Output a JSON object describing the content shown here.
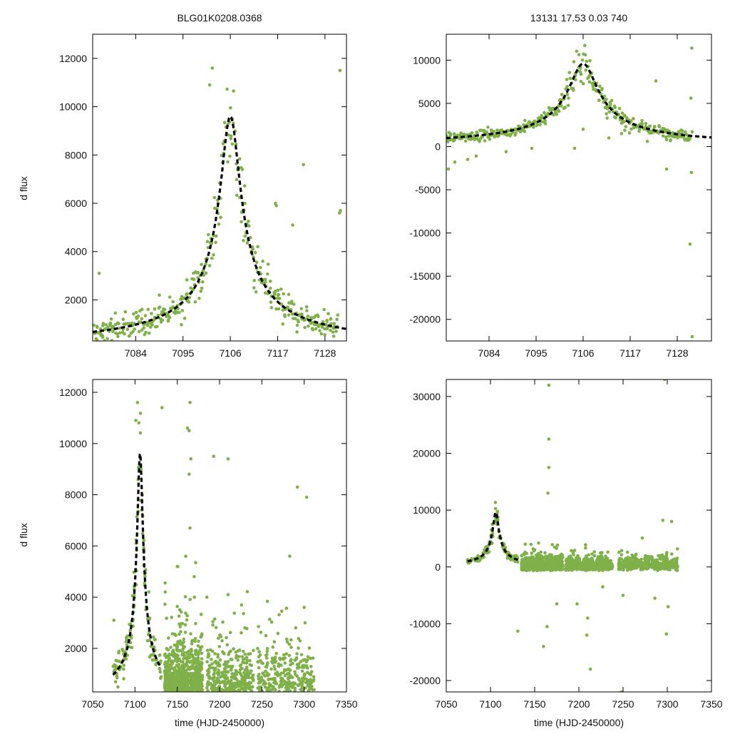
{
  "figure": {
    "title_left": "BLG01K0208.0368",
    "title_right": "13131   17.53   0.03   740",
    "point_color": "#7fb04a",
    "fit_color": "#000000"
  },
  "chart_data": [
    {
      "id": "top-left",
      "type": "scatter",
      "title": "BLG01K0208.0368",
      "xlabel": "",
      "ylabel": "d flux",
      "xlim": [
        7074,
        7133
      ],
      "ylim": [
        300,
        13000
      ],
      "xticks": [
        7084,
        7095,
        7106,
        7117,
        7128
      ],
      "yticks": [
        2000,
        4000,
        6000,
        8000,
        10000,
        12000
      ],
      "points": [
        [
          7075.5,
          3100
        ],
        [
          7089.5,
          2200
        ],
        [
          7101.2,
          10900
        ],
        [
          7101.8,
          11600
        ],
        [
          7108.8,
          7400
        ],
        [
          7111.5,
          2500
        ],
        [
          7116.5,
          6000
        ],
        [
          7116.7,
          5900
        ],
        [
          7118.2,
          1000
        ],
        [
          7120.5,
          5100
        ],
        [
          7123,
          7600
        ],
        [
          7131.5,
          11500
        ],
        [
          7131.4,
          5600
        ],
        [
          7131.6,
          5700
        ],
        [
          7126.5,
          900
        ],
        [
          7129.3,
          1200
        ]
      ],
      "fit": {
        "t0": 7106,
        "peak": 9600,
        "width": 4.5
      },
      "cloud": {
        "from": 7074,
        "to": 7131,
        "scatter": 0.12,
        "count": 380
      }
    },
    {
      "id": "top-right",
      "type": "scatter",
      "title": "13131   17.53   0.03   740",
      "xlabel": "",
      "ylabel": "",
      "xlim": [
        7074,
        7136
      ],
      "ylim": [
        -22500,
        13000
      ],
      "xticks": [
        7084,
        7095,
        7106,
        7117,
        7128
      ],
      "yticks": [
        -20000,
        -15000,
        -10000,
        -5000,
        0,
        5000,
        10000
      ],
      "points": [
        [
          7074.5,
          -2600
        ],
        [
          7076,
          -1800
        ],
        [
          7079,
          -1500
        ],
        [
          7081,
          -1100
        ],
        [
          7088,
          -600
        ],
        [
          7094,
          -200
        ],
        [
          7104,
          -200
        ],
        [
          7106,
          2000
        ],
        [
          7112,
          1000
        ],
        [
          7115,
          1500
        ],
        [
          7121,
          600
        ],
        [
          7123,
          7600
        ],
        [
          7125.5,
          -2600
        ],
        [
          7131,
          -11300
        ],
        [
          7131.4,
          11400
        ],
        [
          7131.2,
          5600
        ],
        [
          7131.5,
          -22000
        ],
        [
          7131.3,
          -3000
        ],
        [
          7131.5,
          1700
        ]
      ],
      "fit": {
        "t0": 7106,
        "peak": 9600,
        "width": 6.6
      },
      "cloud": {
        "from": 7074,
        "to": 7131,
        "scatter": 0.12,
        "count": 380
      }
    },
    {
      "id": "bottom-left",
      "type": "scatter",
      "title": "",
      "xlabel": "time (HJD-2450000)",
      "ylabel": "d flux",
      "xlim": [
        7050,
        7350
      ],
      "ylim": [
        300,
        12500
      ],
      "xticks": [
        7050,
        7100,
        7150,
        7200,
        7250,
        7300,
        7350
      ],
      "yticks": [
        2000,
        4000,
        6000,
        8000,
        10000,
        12000
      ],
      "points": [
        [
          7075,
          3100
        ],
        [
          7101,
          10900
        ],
        [
          7103,
          11600
        ],
        [
          7108,
          7400
        ],
        [
          7132,
          11400
        ],
        [
          7162,
          10600
        ],
        [
          7164,
          10500
        ],
        [
          7165,
          11600
        ],
        [
          7166,
          9400
        ],
        [
          7164,
          8800
        ],
        [
          7193,
          9500
        ],
        [
          7210,
          9400
        ],
        [
          7283,
          5600
        ],
        [
          7292,
          8300
        ],
        [
          7303,
          7900
        ],
        [
          7300,
          3600
        ],
        [
          7301,
          3000
        ],
        [
          7290,
          2800
        ],
        [
          7185,
          4000
        ],
        [
          7210,
          4100
        ],
        [
          7150,
          5200
        ],
        [
          7160,
          5600
        ],
        [
          7165,
          6700
        ],
        [
          7170,
          4800
        ],
        [
          7230,
          2800
        ]
      ],
      "fit": {
        "t0": 7106,
        "peak": 9600,
        "width": 6.5,
        "from": 7074,
        "to": 7131
      },
      "noise": [
        {
          "from": 7135,
          "to": 7180,
          "count": 900
        },
        {
          "from": 7185,
          "to": 7240,
          "count": 420
        },
        {
          "from": 7245,
          "to": 7312,
          "count": 380
        }
      ]
    },
    {
      "id": "bottom-right",
      "type": "scatter",
      "title": "",
      "xlabel": "time (HJD-2450000)",
      "ylabel": "",
      "xlim": [
        7050,
        7350
      ],
      "ylim": [
        -22000,
        33000
      ],
      "xticks": [
        7050,
        7100,
        7150,
        7200,
        7250,
        7300,
        7350
      ],
      "yticks": [
        -20000,
        -10000,
        0,
        10000,
        20000,
        30000
      ],
      "points": [
        [
          7131,
          -11300
        ],
        [
          7166,
          32000
        ],
        [
          7166,
          22500
        ],
        [
          7166,
          17500
        ],
        [
          7165,
          13000
        ],
        [
          7160,
          -14000
        ],
        [
          7164,
          -10500
        ],
        [
          7213,
          -18000
        ],
        [
          7209,
          -12000
        ],
        [
          7210,
          -9000
        ],
        [
          7248,
          -22000
        ],
        [
          7297,
          33000
        ],
        [
          7299,
          -11800
        ],
        [
          7301,
          -7000
        ],
        [
          7295,
          8200
        ],
        [
          7305,
          8000
        ],
        [
          7290,
          2000
        ],
        [
          7250,
          -5000
        ],
        [
          7286,
          -5500
        ],
        [
          7175,
          -6500
        ],
        [
          7198,
          -6500
        ],
        [
          7227,
          -3500
        ],
        [
          7255,
          2600
        ]
      ],
      "fit": {
        "t0": 7106,
        "peak": 9600,
        "width": 6.6,
        "from": 7074,
        "to": 7131
      },
      "noise": [
        {
          "from": 7135,
          "to": 7182,
          "count": 900
        },
        {
          "from": 7185,
          "to": 7238,
          "count": 450
        },
        {
          "from": 7245,
          "to": 7312,
          "count": 420
        }
      ]
    }
  ]
}
